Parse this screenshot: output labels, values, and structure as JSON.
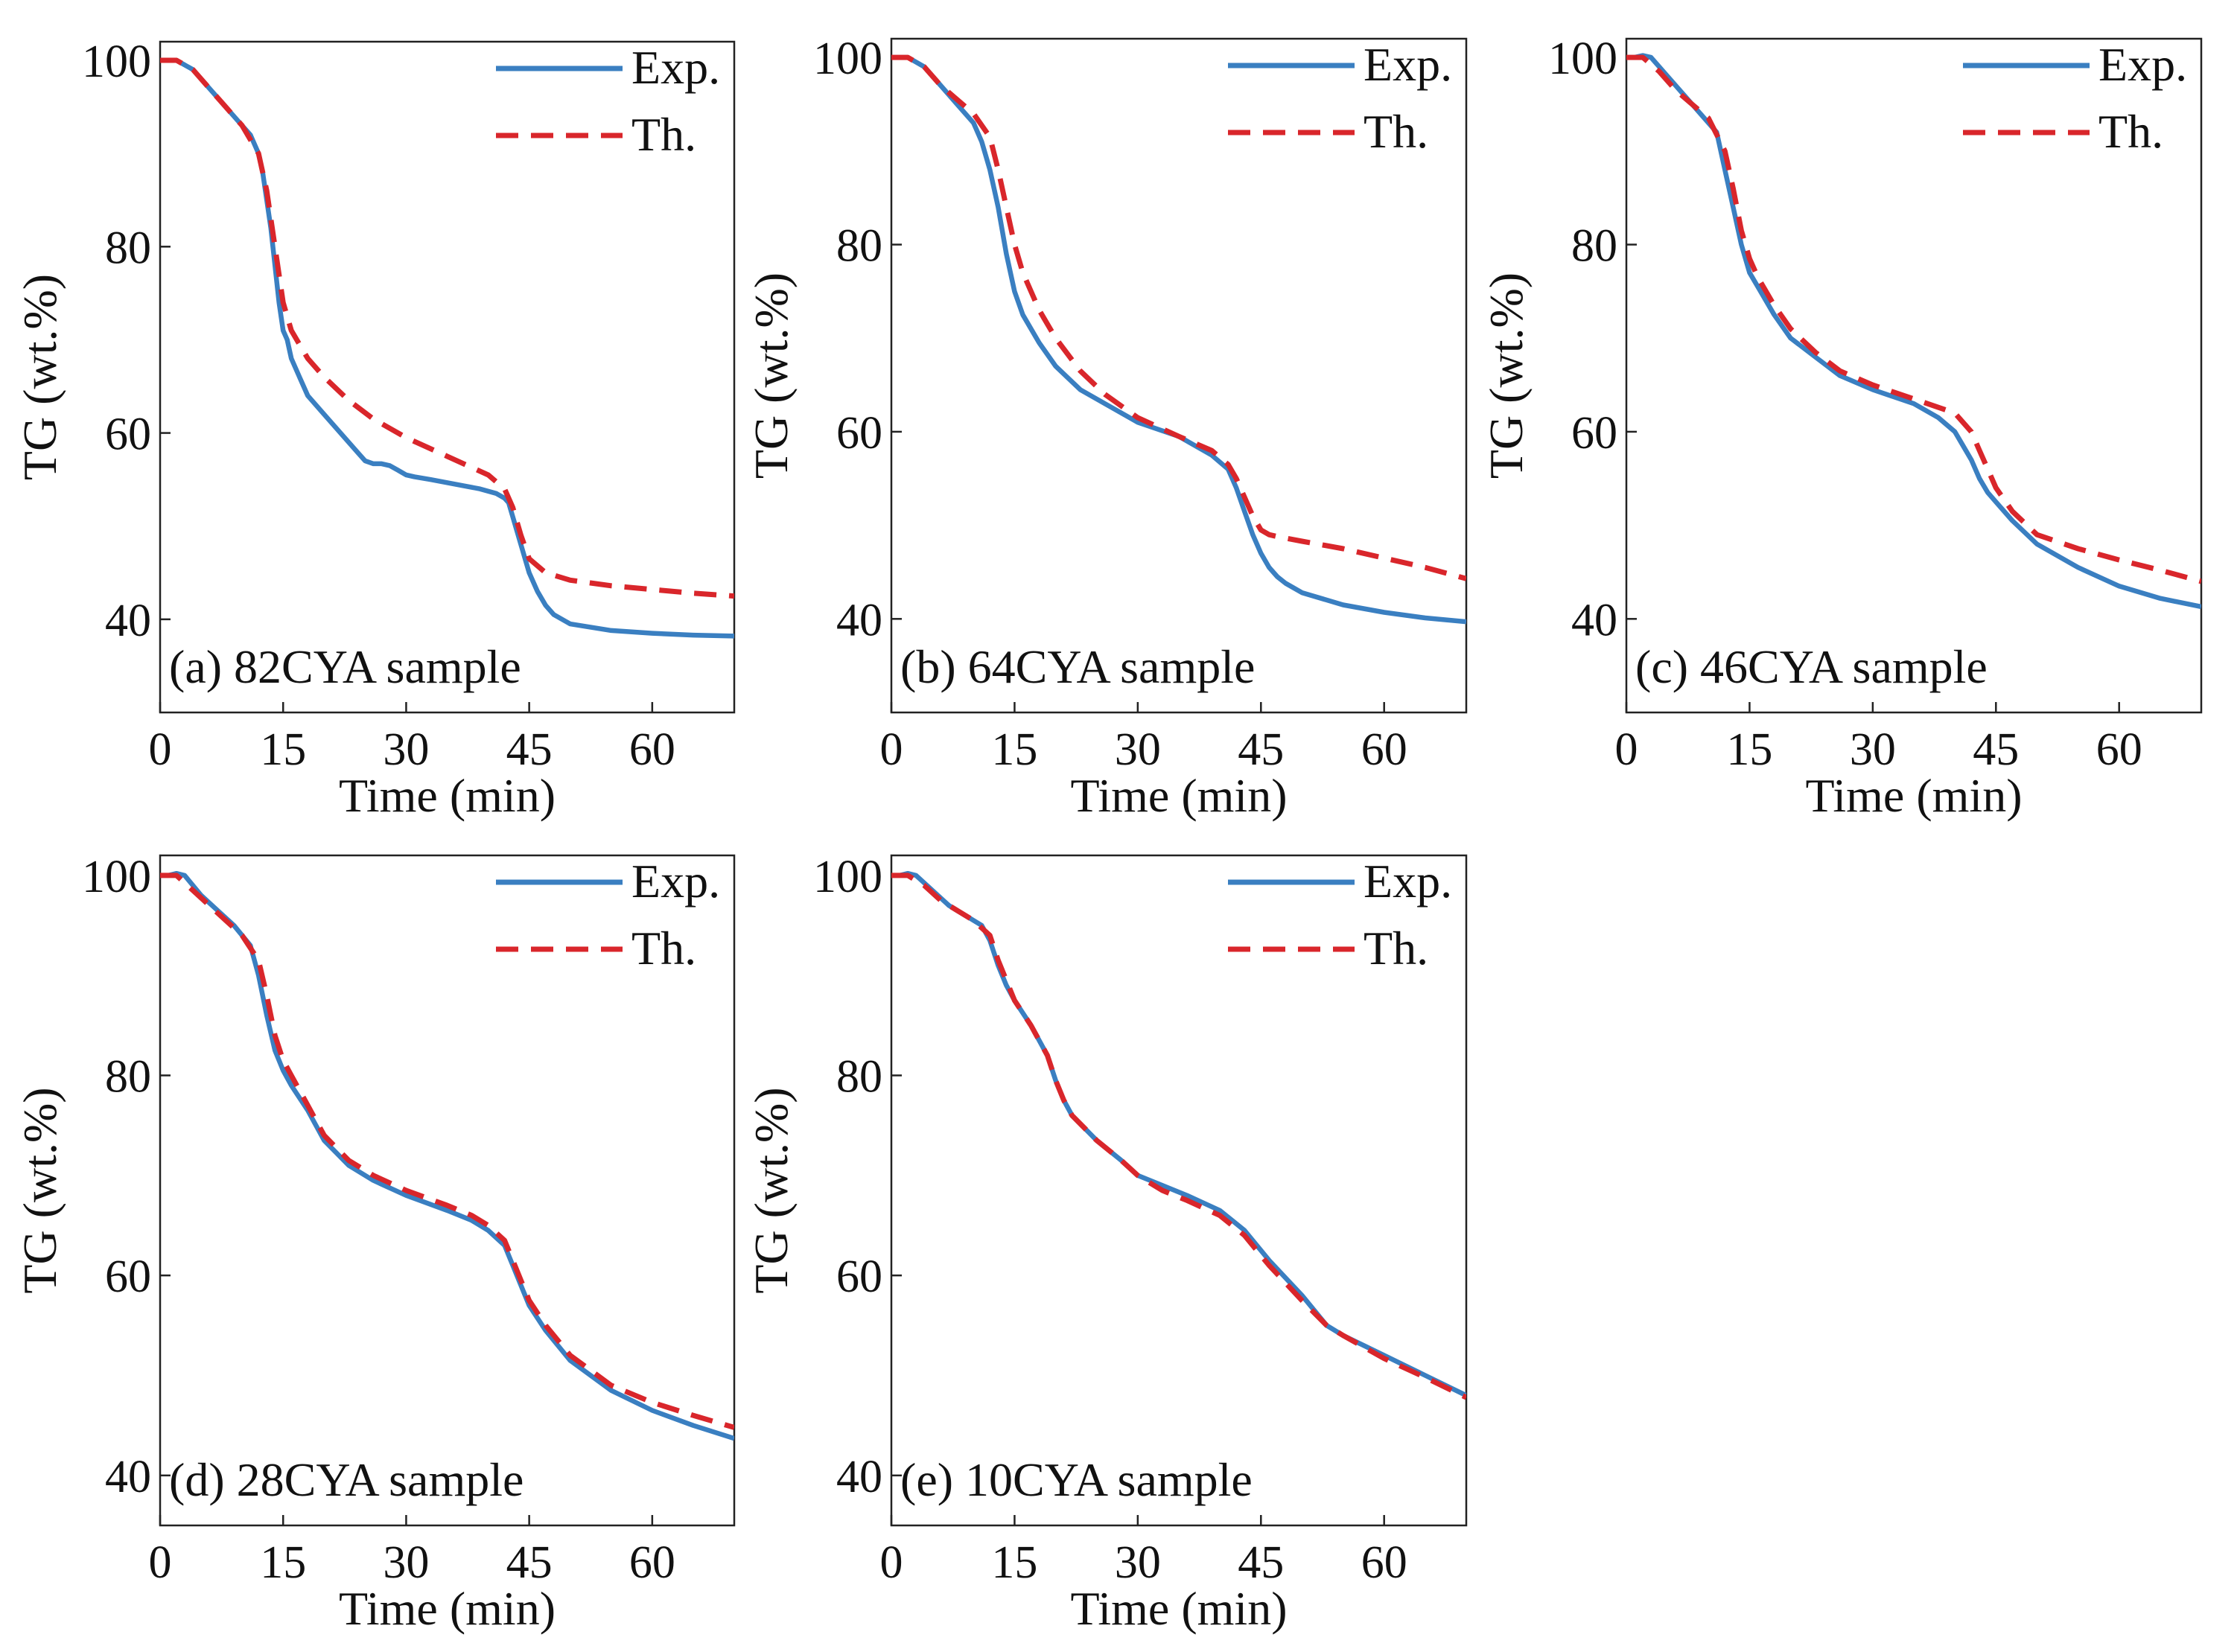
{
  "colors": {
    "exp": "#3a7fc1",
    "th": "#d9262b",
    "axis": "#222222",
    "text": "#111111"
  },
  "chart_data": [
    {
      "type": "line",
      "panel_label": "(a) 82CYA sample",
      "xlabel": "Time (min)",
      "ylabel": "TG (wt.%)",
      "xlim": [
        0,
        70
      ],
      "ylim": [
        30,
        102
      ],
      "xticks": [
        0,
        15,
        30,
        45,
        60
      ],
      "yticks": [
        40,
        60,
        80,
        100
      ],
      "legend": {
        "placement": "top-right",
        "entries": [
          "Exp.",
          "Th."
        ]
      },
      "series": [
        {
          "name": "Exp.",
          "style": "solid",
          "x": [
            0,
            1,
            2,
            4,
            6,
            8,
            10,
            11,
            12,
            12.5,
            13,
            13.5,
            14,
            14.5,
            15,
            15.5,
            16,
            17,
            18,
            20,
            22,
            24,
            25,
            26,
            27,
            28,
            29,
            30,
            31,
            33,
            36,
            39,
            41,
            42,
            42.5,
            43,
            44,
            45,
            46,
            47,
            48,
            50,
            55,
            60,
            65,
            70
          ],
          "y": [
            100,
            100,
            100,
            99,
            97,
            95,
            93,
            92,
            90,
            88,
            85,
            82,
            78,
            74,
            71,
            70,
            68,
            66,
            64,
            62,
            60,
            58,
            57,
            56.7,
            56.7,
            56.5,
            56,
            55.5,
            55.3,
            55,
            54.5,
            54,
            53.5,
            53,
            52.5,
            51,
            48,
            45,
            43,
            41.5,
            40.5,
            39.5,
            38.8,
            38.5,
            38.3,
            38.2
          ]
        },
        {
          "name": "Th.",
          "style": "dashed",
          "x": [
            0,
            2,
            4,
            6,
            8,
            10,
            12,
            13,
            14,
            15,
            16,
            18,
            20,
            23,
            26,
            30,
            35,
            40,
            42,
            43,
            44,
            45,
            47,
            50,
            55,
            60,
            65,
            70
          ],
          "y": [
            100,
            100,
            99,
            97,
            95,
            93,
            90,
            86,
            80,
            74,
            71,
            68,
            66,
            63.5,
            61.5,
            59.5,
            57.5,
            55.5,
            54,
            52,
            49,
            46.5,
            45,
            44.2,
            43.6,
            43.2,
            42.8,
            42.5
          ]
        }
      ]
    },
    {
      "type": "line",
      "panel_label": "(b) 64CYA sample",
      "xlabel": "Time (min)",
      "ylabel": "TG (wt.%)",
      "xlim": [
        0,
        70
      ],
      "ylim": [
        30,
        102
      ],
      "xticks": [
        0,
        15,
        30,
        45,
        60
      ],
      "yticks": [
        40,
        60,
        80,
        100
      ],
      "legend": {
        "placement": "top-right",
        "entries": [
          "Exp.",
          "Th."
        ]
      },
      "series": [
        {
          "name": "Exp.",
          "style": "solid",
          "x": [
            0,
            1,
            2,
            4,
            6,
            8,
            10,
            11,
            12,
            13,
            14,
            15,
            16,
            18,
            20,
            23,
            26,
            30,
            35,
            39,
            41,
            42,
            43,
            44,
            45,
            46,
            47,
            48,
            50,
            55,
            60,
            65,
            70
          ],
          "y": [
            100,
            100,
            100,
            99,
            97,
            95,
            93,
            91,
            88,
            84,
            79,
            75,
            72.5,
            69.5,
            67,
            64.5,
            63,
            61,
            59.5,
            57.5,
            56,
            54,
            51.5,
            49,
            47,
            45.5,
            44.5,
            43.8,
            42.8,
            41.5,
            40.7,
            40.1,
            39.7
          ]
        },
        {
          "name": "Th.",
          "style": "dashed",
          "x": [
            0,
            2,
            4,
            6,
            8,
            10,
            12,
            13,
            14,
            15,
            16,
            18,
            20,
            23,
            26,
            30,
            35,
            39,
            41,
            42,
            43,
            44,
            45,
            46,
            47,
            50,
            55,
            60,
            65,
            70
          ],
          "y": [
            100,
            100,
            99,
            97,
            95.5,
            94,
            91.5,
            88,
            84,
            80,
            77,
            73,
            70,
            66.5,
            64,
            61.5,
            59.5,
            58,
            56.5,
            55,
            53,
            51,
            49.5,
            49,
            48.8,
            48.3,
            47.5,
            46.5,
            45.5,
            44.3
          ]
        }
      ]
    },
    {
      "type": "line",
      "panel_label": "(c) 46CYA sample",
      "xlabel": "Time (min)",
      "ylabel": "TG (wt.%)",
      "xlim": [
        0,
        70
      ],
      "ylim": [
        30,
        102
      ],
      "xticks": [
        0,
        15,
        30,
        45,
        60
      ],
      "yticks": [
        40,
        60,
        80,
        100
      ],
      "legend": {
        "placement": "top-right",
        "entries": [
          "Exp.",
          "Th."
        ]
      },
      "series": [
        {
          "name": "Exp.",
          "style": "solid",
          "x": [
            0,
            1,
            2,
            3,
            5,
            7,
            9,
            11,
            12,
            13,
            14,
            15,
            16,
            18,
            20,
            23,
            26,
            30,
            35,
            38,
            40,
            41,
            42,
            43,
            44,
            45,
            47,
            50,
            55,
            60,
            65,
            70
          ],
          "y": [
            100,
            100,
            100.2,
            100,
            98,
            96,
            94,
            92,
            88,
            84,
            80,
            77,
            75.5,
            72.5,
            70,
            68,
            66,
            64.5,
            63,
            61.5,
            60,
            58.5,
            57,
            55,
            53.5,
            52.5,
            50.5,
            48,
            45.5,
            43.5,
            42.2,
            41.3
          ]
        },
        {
          "name": "Th.",
          "style": "dashed",
          "x": [
            0,
            2,
            4,
            6,
            8,
            10,
            12,
            13,
            14,
            15,
            16,
            18,
            20,
            23,
            26,
            30,
            35,
            40,
            42,
            43,
            44,
            45,
            47,
            50,
            55,
            60,
            65,
            70
          ],
          "y": [
            100,
            100,
            98.5,
            96.5,
            95,
            93.5,
            90,
            86,
            81.5,
            78.5,
            76.5,
            73.5,
            71,
            68.5,
            66.5,
            65,
            63.5,
            62,
            60,
            58,
            56,
            54,
            51.5,
            49,
            47.5,
            46.3,
            45.2,
            44
          ]
        }
      ]
    },
    {
      "type": "line",
      "panel_label": "(d) 28CYA sample",
      "xlabel": "Time (min)",
      "ylabel": "TG (wt.%)",
      "xlim": [
        0,
        70
      ],
      "ylim": [
        35,
        102
      ],
      "xticks": [
        0,
        15,
        30,
        45,
        60
      ],
      "yticks": [
        40,
        60,
        80,
        100
      ],
      "legend": {
        "placement": "top-right",
        "entries": [
          "Exp.",
          "Th."
        ]
      },
      "series": [
        {
          "name": "Exp.",
          "style": "solid",
          "x": [
            0,
            1,
            2,
            3,
            5,
            7,
            9,
            11,
            12,
            13,
            14,
            15,
            16,
            18,
            20,
            23,
            26,
            30,
            35,
            38,
            40,
            42,
            43,
            44,
            45,
            47,
            50,
            55,
            60,
            65,
            70
          ],
          "y": [
            100,
            100,
            100.2,
            100,
            98,
            96.5,
            95,
            93,
            90,
            86,
            82.5,
            80.5,
            79,
            76.5,
            73.5,
            71,
            69.5,
            68,
            66.5,
            65.5,
            64.5,
            63,
            61,
            59,
            57,
            54.5,
            51.5,
            48.5,
            46.5,
            45,
            43.7
          ]
        },
        {
          "name": "Th.",
          "style": "dashed",
          "x": [
            0,
            2,
            4,
            6,
            8,
            10,
            12,
            13,
            14,
            15,
            16,
            18,
            20,
            23,
            26,
            30,
            35,
            38,
            40,
            42,
            43,
            44,
            45,
            47,
            50,
            55,
            60,
            65,
            70
          ],
          "y": [
            100,
            100,
            98.5,
            97,
            95.5,
            94,
            91.5,
            88,
            84,
            81.5,
            80,
            77,
            74,
            71.5,
            70,
            68.5,
            67,
            66,
            65,
            63.5,
            61.5,
            59.5,
            57.5,
            55,
            52,
            49,
            47.3,
            46,
            44.8
          ]
        }
      ]
    },
    {
      "type": "line",
      "panel_label": "(e) 10CYA sample",
      "xlabel": "Time (min)",
      "ylabel": "TG (wt.%)",
      "xlim": [
        0,
        70
      ],
      "ylim": [
        35,
        102
      ],
      "xticks": [
        0,
        15,
        30,
        45,
        60
      ],
      "yticks": [
        40,
        60,
        80,
        100
      ],
      "legend": {
        "placement": "top-right",
        "entries": [
          "Exp.",
          "Th."
        ]
      },
      "series": [
        {
          "name": "Exp.",
          "style": "solid",
          "x": [
            0,
            1,
            2,
            3,
            5,
            7,
            9,
            11,
            12,
            13,
            14,
            15,
            17,
            19,
            20,
            21,
            22,
            25,
            28,
            30,
            33,
            36,
            40,
            43,
            46,
            50,
            53,
            55,
            60,
            65,
            70
          ],
          "y": [
            100,
            100,
            100.2,
            100,
            98.5,
            97,
            96,
            95,
            93.5,
            91,
            89,
            87.5,
            85,
            82,
            79.5,
            77.5,
            76,
            73.5,
            71.5,
            70,
            69,
            68,
            66.5,
            64.5,
            61.5,
            58,
            55,
            54,
            52,
            50,
            48
          ]
        },
        {
          "name": "Th.",
          "style": "dashed",
          "x": [
            0,
            2,
            4,
            6,
            8,
            10,
            12,
            13,
            14,
            15,
            17,
            19,
            20,
            21,
            22,
            25,
            28,
            30,
            33,
            36,
            40,
            43,
            46,
            50,
            53,
            55,
            60,
            65,
            70
          ],
          "y": [
            100,
            100,
            99,
            97.5,
            96.5,
            95.5,
            94,
            91.5,
            89.5,
            87.5,
            85,
            82,
            79.5,
            77.5,
            76,
            73.5,
            71.5,
            70,
            68.5,
            67.5,
            66,
            64,
            61,
            57.5,
            55,
            54,
            51.7,
            49.8,
            47.8
          ]
        }
      ]
    }
  ]
}
